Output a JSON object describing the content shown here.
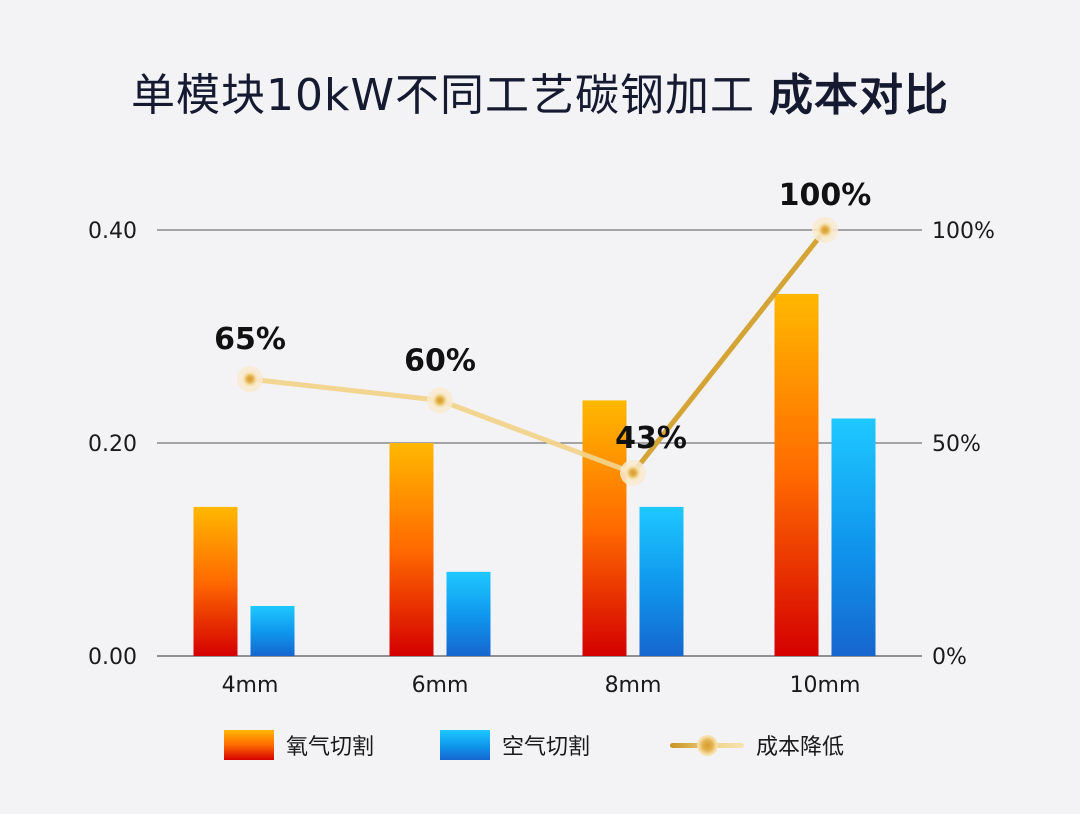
{
  "title": {
    "main": "单模块10kW不同工艺碳钢加工",
    "strong": "成本对比"
  },
  "legend": {
    "oxygen": "氧气切割",
    "air": "空气切割",
    "line": "成本降低"
  },
  "colors": {
    "oxygen_top": "#ffb800",
    "oxygen_mid": "#ff6a00",
    "oxygen_bottom": "#d40000",
    "air_top": "#1ec8ff",
    "air_mid": "#0f94ec",
    "air_bottom": "#1666cf",
    "line_main": "#d4a437",
    "line_light": "#f1d38a",
    "gridline": "#555555",
    "background": "#f3f3f6"
  },
  "chart_data": {
    "type": "bar",
    "categories": [
      "4mm",
      "6mm",
      "8mm",
      "10mm"
    ],
    "series": [
      {
        "name": "氧气切割",
        "type": "bar",
        "axis": "left",
        "values": [
          0.14,
          0.2,
          0.24,
          0.34
        ]
      },
      {
        "name": "空气切割",
        "type": "bar",
        "axis": "left",
        "values": [
          0.047,
          0.079,
          0.14,
          0.223
        ]
      },
      {
        "name": "成本降低",
        "type": "line",
        "axis": "right",
        "values": [
          65,
          60,
          43,
          100
        ],
        "labels": [
          "65%",
          "60%",
          "43%",
          "100%"
        ]
      }
    ],
    "y_left": {
      "ylim": [
        0,
        0.4
      ],
      "ticks": [
        0,
        0.2,
        0.4
      ],
      "tick_labels": [
        "0.00",
        "0.20",
        "0.40"
      ]
    },
    "y_right": {
      "ylim": [
        0,
        100
      ],
      "ticks": [
        0,
        50,
        100
      ],
      "tick_labels": [
        "0%",
        "50%",
        "100%"
      ]
    },
    "grid": true,
    "legend_position": "bottom"
  }
}
